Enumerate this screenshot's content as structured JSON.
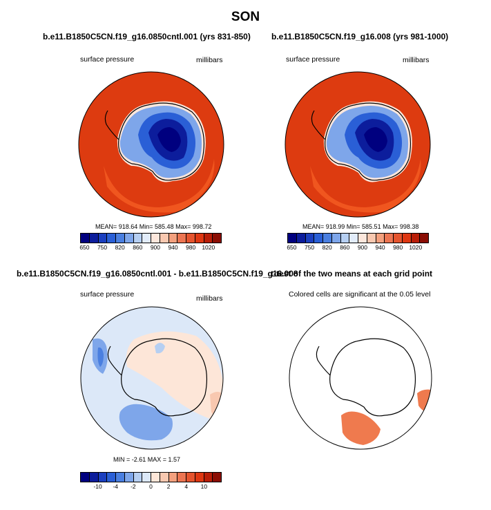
{
  "figure_title": "SON",
  "panels": [
    {
      "title": "b.e11.B1850C5CN.f19_g16.0850cntl.001 (yrs 831-850)",
      "left_label": "surface pressure",
      "right_label": "millibars",
      "stats": "MEAN= 918.64  Min= 585.48  Max= 998.72",
      "colorbar_labels": [
        "650",
        "750",
        "820",
        "860",
        "900",
        "940",
        "980",
        "1020"
      ]
    },
    {
      "title": "b.e11.B1850C5CN.f19_g16.008 (yrs 981-1000)",
      "left_label": "surface pressure",
      "right_label": "millibars",
      "stats": "MEAN= 918.99  Min= 585.51  Max= 998.38",
      "colorbar_labels": [
        "650",
        "750",
        "820",
        "860",
        "900",
        "940",
        "980",
        "1020"
      ]
    },
    {
      "title": "b.e11.B1850C5CN.f19_g16.0850cntl.001 - b.e11.B1850C5CN.f19_g16.008",
      "left_label": "surface pressure",
      "right_label": "millibars",
      "stats": "MIN = -2.61  MAX =  1.57",
      "colorbar_labels": [
        "-10",
        "-4",
        "-2",
        "0",
        "2",
        "4",
        "10"
      ]
    },
    {
      "title": "t-test of the two means at each grid point",
      "subtitle": "Colored cells are significant at the 0.05 level"
    }
  ],
  "colors": {
    "abs_scale": [
      "#00007f",
      "#0c1d9c",
      "#1b3fbf",
      "#2a5fd6",
      "#4a7fe0",
      "#7ea6ea",
      "#b6cff2",
      "#e2ecfa",
      "#fde7dc",
      "#f8c8b0",
      "#f3a07e",
      "#ec7552",
      "#e5542e",
      "#de3712",
      "#b91e08",
      "#8b0e04"
    ],
    "diff_scale": [
      "#00007f",
      "#0c1d9c",
      "#1b3fbf",
      "#2a5fd6",
      "#4a7fe0",
      "#7ea6ea",
      "#b6cff2",
      "#dce8f8",
      "#fde6d8",
      "#f8c8b0",
      "#f3a07e",
      "#ec7552",
      "#e5542e",
      "#de3712",
      "#b91e08",
      "#8b0e04"
    ],
    "ocean_fill": "#dd3b10",
    "ocean_ring": "#f0561f",
    "significant": "#ef7a4e"
  }
}
